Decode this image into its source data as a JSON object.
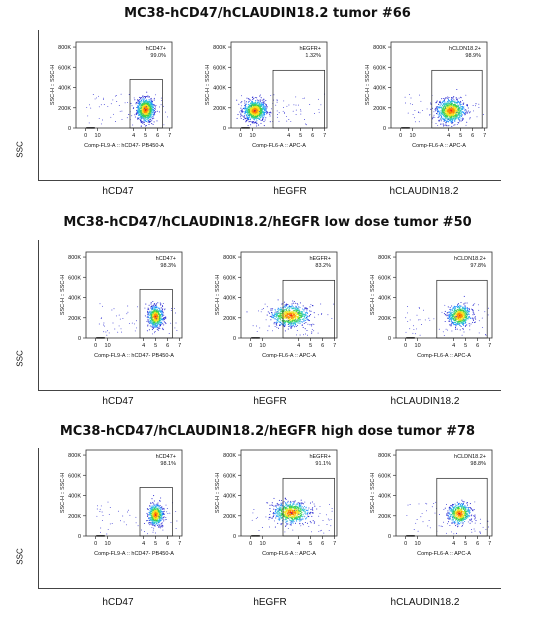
{
  "panels": [
    {
      "title": "MC38-hCD47/hCLAUDIN18.2 tumor #66",
      "ssc_label": "SSC",
      "plots": [
        {
          "marker": "hCD47",
          "gate_label": "hCD47+",
          "gate_value": "99.0%",
          "x_axis_label": "Comp-FL9-A :: hCD47- PB450-A",
          "y_axis_label": "SSC-H :: SSC-H",
          "gate": {
            "x0": 3.7,
            "x1": 6.4,
            "y0": 0,
            "y1": 480
          },
          "cluster": {
            "cx": 5.0,
            "cy": 180,
            "sx": 0.35,
            "sy": 55,
            "n": 900
          }
        },
        {
          "marker": "hEGFR",
          "gate_label": "hEGFR+",
          "gate_value": "1.32%",
          "x_axis_label": "Comp-FL6-A :: APC-A",
          "y_axis_label": "SSC-H :: SSC-H",
          "gate": {
            "x0": 2.7,
            "x1": 7.0,
            "y0": 0,
            "y1": 570
          },
          "cluster": {
            "cx": 1.2,
            "cy": 170,
            "sx": 0.45,
            "sy": 50,
            "n": 900
          }
        },
        {
          "marker": "hCLAUDIN18.2",
          "gate_label": "hCLDN18.2+",
          "gate_value": "98.9%",
          "x_axis_label": "Comp-FL6-A :: APC-A",
          "y_axis_label": "SSC-H :: SSC-H",
          "gate": {
            "x0": 2.6,
            "x1": 6.8,
            "y0": 0,
            "y1": 570
          },
          "cluster": {
            "cx": 4.2,
            "cy": 170,
            "sx": 0.55,
            "sy": 55,
            "n": 900
          }
        }
      ]
    },
    {
      "title": "MC38-hCD47/hCLAUDIN18.2/hEGFR low dose tumor #50",
      "ssc_label": "SSC",
      "plots": [
        {
          "marker": "hCD47",
          "gate_label": "hCD47+",
          "gate_value": "98.3%",
          "x_axis_label": "Comp-FL9-A :: hCD47- PB450-A",
          "y_axis_label": "SSC-H :: SSC-H",
          "gate": {
            "x0": 3.7,
            "x1": 6.4,
            "y0": 0,
            "y1": 480
          },
          "cluster": {
            "cx": 5.0,
            "cy": 210,
            "sx": 0.3,
            "sy": 50,
            "n": 650
          }
        },
        {
          "marker": "hEGFR",
          "gate_label": "hEGFR+",
          "gate_value": "83.2%",
          "x_axis_label": "Comp-FL6-A :: APC-A",
          "y_axis_label": "SSC-H :: SSC-H",
          "gate": {
            "x0": 2.7,
            "x1": 7.0,
            "y0": 0,
            "y1": 570
          },
          "cluster": {
            "cx": 3.3,
            "cy": 220,
            "sx": 0.75,
            "sy": 50,
            "n": 750
          }
        },
        {
          "marker": "hCLAUDIN18.2",
          "gate_label": "hCLDN18.2+",
          "gate_value": "97.8%",
          "x_axis_label": "Comp-FL6-A :: APC-A",
          "y_axis_label": "SSC-H :: SSC-H",
          "gate": {
            "x0": 2.6,
            "x1": 6.8,
            "y0": 0,
            "y1": 570
          },
          "cluster": {
            "cx": 4.5,
            "cy": 220,
            "sx": 0.45,
            "sy": 50,
            "n": 650
          }
        }
      ]
    },
    {
      "title": "MC38-hCD47/hCLAUDIN18.2/hEGFR high dose tumor #78",
      "ssc_label": "SSC",
      "plots": [
        {
          "marker": "hCD47",
          "gate_label": "hCD47+",
          "gate_value": "98.1%",
          "x_axis_label": "Comp-FL9-A :: hCD47- PB450-A",
          "y_axis_label": "SSC-H :: SSC-H",
          "gate": {
            "x0": 3.7,
            "x1": 6.4,
            "y0": 0,
            "y1": 480
          },
          "cluster": {
            "cx": 5.0,
            "cy": 210,
            "sx": 0.3,
            "sy": 50,
            "n": 550
          }
        },
        {
          "marker": "hEGFR",
          "gate_label": "hEGFR+",
          "gate_value": "91.1%",
          "x_axis_label": "Comp-FL6-A :: APC-A",
          "y_axis_label": "SSC-H :: SSC-H",
          "gate": {
            "x0": 2.7,
            "x1": 7.0,
            "y0": 0,
            "y1": 570
          },
          "cluster": {
            "cx": 3.4,
            "cy": 230,
            "sx": 0.7,
            "sy": 50,
            "n": 700
          }
        },
        {
          "marker": "hCLAUDIN18.2",
          "gate_label": "hCLDN18.2+",
          "gate_value": "98.8%",
          "x_axis_label": "Comp-FL6-A :: APC-A",
          "y_axis_label": "SSC-H :: SSC-H",
          "gate": {
            "x0": 2.6,
            "x1": 6.8,
            "y0": 0,
            "y1": 570
          },
          "cluster": {
            "cx": 4.5,
            "cy": 220,
            "sx": 0.45,
            "sy": 50,
            "n": 550
          }
        }
      ]
    }
  ],
  "chart_data": {
    "type": "scatter",
    "y_ticks": [
      "0",
      "200K",
      "400K",
      "600K",
      "800K"
    ],
    "y_tick_values": [
      0,
      200,
      400,
      600,
      800
    ],
    "x_ticks": [
      "0",
      "10",
      "4",
      "5",
      "6",
      "7"
    ],
    "x_tick_values": [
      0,
      1,
      4,
      5,
      6,
      7
    ],
    "ylim": [
      0,
      850
    ],
    "xlim": [
      -0.8,
      7.2
    ],
    "density_colors": [
      "#2a2ad0",
      "#1e90ff",
      "#2ec7c7",
      "#3cd04a",
      "#f2e522",
      "#ff8a00",
      "#e81e1e"
    ]
  }
}
